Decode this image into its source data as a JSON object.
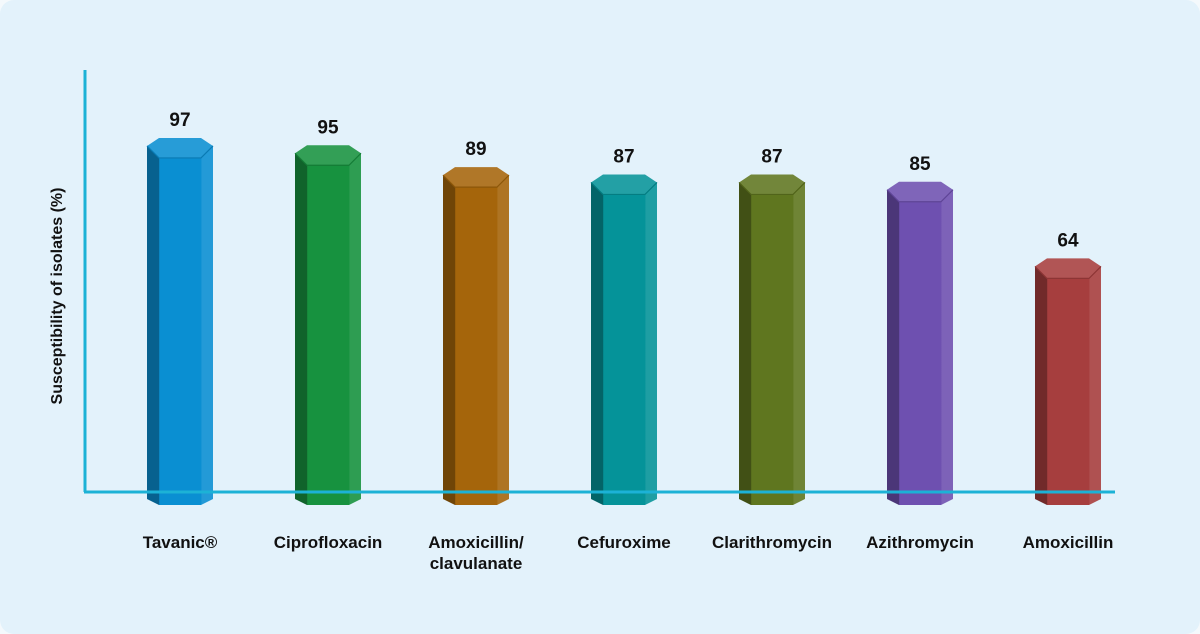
{
  "chart_data": {
    "type": "bar",
    "title": "",
    "xlabel": "",
    "ylabel": "Susceptibility of isolates (%)",
    "ylim": [
      0,
      100
    ],
    "grid": false,
    "categories": [
      [
        "Tavanic®"
      ],
      [
        "Ciprofloxacin"
      ],
      [
        "Amoxicillin/",
        "clavulanate"
      ],
      [
        "Cefuroxime"
      ],
      [
        "Clarithromycin"
      ],
      [
        "Azithromycin"
      ],
      [
        "Amoxicillin"
      ]
    ],
    "values": [
      97,
      95,
      89,
      87,
      87,
      85,
      64
    ],
    "colors": [
      "#0a8fd2",
      "#17923f",
      "#a5650b",
      "#059399",
      "#5f761f",
      "#6e50b0",
      "#a63e3e"
    ],
    "axis_color": "#1cb2d6"
  }
}
